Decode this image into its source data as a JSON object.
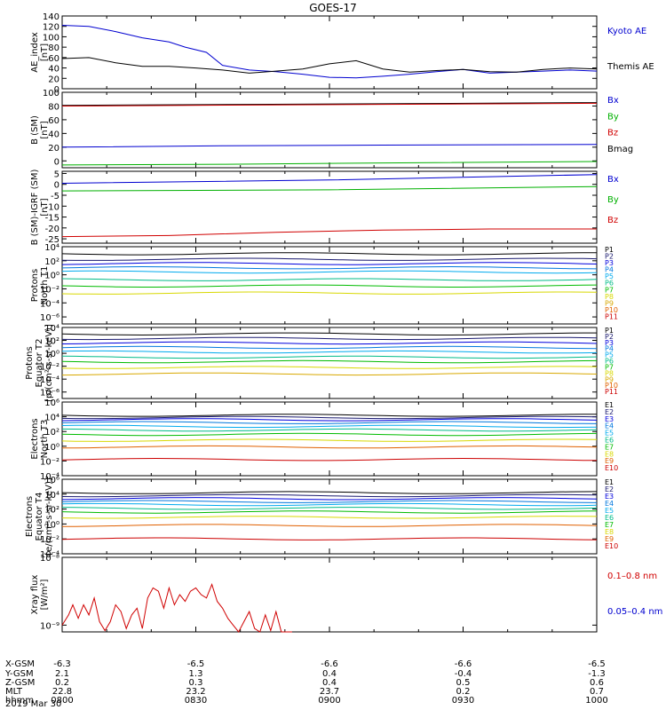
{
  "title": "GOES-17",
  "date_label": "2019 Mar 30",
  "colors": {
    "blue": "#0000d0",
    "black": "#000000",
    "red": "#d00000",
    "green": "#00b000",
    "dark_red": "#c00000",
    "rainbow11": [
      "#000000",
      "#1a1a70",
      "#0000dd",
      "#0077dd",
      "#00aaee",
      "#00bb88",
      "#00bb00",
      "#d8d800",
      "#d8a800",
      "#e06000",
      "#cc0000"
    ],
    "electrons10": [
      "#000000",
      "#1a1a70",
      "#0000dd",
      "#0077dd",
      "#00aaee",
      "#00bb88",
      "#00bb00",
      "#d8d800",
      "#e06000",
      "#cc0000"
    ]
  },
  "ephemeris": {
    "row_labels": [
      "X-GSM",
      "Y-GSM",
      "Z-GSM",
      "MLT",
      "hhmm"
    ],
    "columns": [
      [
        "-6.3",
        "2.1",
        "0.2",
        "22.8",
        "0800"
      ],
      [
        "-6.5",
        "1.3",
        "0.3",
        "23.2",
        "0830"
      ],
      [
        "-6.6",
        "0.4",
        "0.4",
        "23.7",
        "0900"
      ],
      [
        "-6.6",
        "-0.4",
        "0.5",
        "0.2",
        "0930"
      ],
      [
        "-6.5",
        "-1.3",
        "0.6",
        "0.7",
        "1000"
      ]
    ]
  },
  "chart_data": [
    {
      "type": "line",
      "ylabel": [
        "AE_index",
        "[nT]"
      ],
      "ylim": [
        0,
        140
      ],
      "yticks": [
        "0",
        "20",
        "40",
        "60",
        "80",
        "100",
        "120",
        "140"
      ],
      "time_range": [
        "0800",
        "1000"
      ],
      "legend": [
        {
          "label": "Kyoto AE",
          "color": "#0000d0"
        },
        {
          "label": "Themis AE",
          "color": "#000000"
        }
      ],
      "series": [
        {
          "name": "Kyoto AE",
          "color": "#0000d0",
          "x": [
            0,
            0.05,
            0.1,
            0.15,
            0.2,
            0.23,
            0.27,
            0.3,
            0.35,
            0.4,
            0.45,
            0.5,
            0.55,
            0.6,
            0.65,
            0.7,
            0.75,
            0.8,
            0.85,
            0.9,
            0.95,
            1.0
          ],
          "values": [
            122,
            120,
            110,
            98,
            90,
            80,
            70,
            45,
            36,
            33,
            28,
            22,
            21,
            24,
            28,
            33,
            37,
            30,
            32,
            34,
            36,
            34
          ]
        },
        {
          "name": "Themis AE",
          "color": "#000000",
          "x": [
            0,
            0.05,
            0.1,
            0.15,
            0.2,
            0.25,
            0.3,
            0.35,
            0.4,
            0.45,
            0.5,
            0.55,
            0.6,
            0.65,
            0.7,
            0.75,
            0.8,
            0.85,
            0.9,
            0.95,
            1.0
          ],
          "values": [
            58,
            60,
            50,
            43,
            43,
            40,
            36,
            30,
            34,
            38,
            48,
            54,
            38,
            32,
            35,
            37,
            33,
            32,
            37,
            40,
            38
          ]
        }
      ]
    },
    {
      "type": "line",
      "ylabel": [
        "B (SM)",
        "[nT]"
      ],
      "ylim": [
        -10,
        100
      ],
      "yticks": [
        "0",
        "20",
        "40",
        "60",
        "80",
        "100"
      ],
      "legend": [
        {
          "label": "Bx",
          "color": "#0000d0"
        },
        {
          "label": "By",
          "color": "#00b000"
        },
        {
          "label": "Bz",
          "color": "#d00000"
        },
        {
          "label": "Bmag",
          "color": "#000000"
        }
      ],
      "series": [
        {
          "name": "Bmag",
          "color": "#000000",
          "x": [
            0,
            1
          ],
          "values": [
            81,
            85
          ]
        },
        {
          "name": "Bz",
          "color": "#d00000",
          "x": [
            0,
            1
          ],
          "values": [
            80,
            84
          ]
        },
        {
          "name": "Bx",
          "color": "#0000d0",
          "x": [
            0,
            0.3,
            0.6,
            1
          ],
          "values": [
            20,
            22,
            23,
            24
          ]
        },
        {
          "name": "By",
          "color": "#00b000",
          "x": [
            0,
            0.3,
            0.6,
            1
          ],
          "values": [
            -6,
            -5,
            -3,
            -1
          ]
        }
      ]
    },
    {
      "type": "line",
      "ylabel": [
        "B (SM)-IGRF (SM)",
        "[nT]"
      ],
      "ylim": [
        -27,
        6
      ],
      "yticks": [
        "-25",
        "-20",
        "-15",
        "-10",
        "-5",
        "0",
        "5"
      ],
      "legend": [
        {
          "label": "Bx",
          "color": "#0000d0"
        },
        {
          "label": "By",
          "color": "#00b000"
        },
        {
          "label": "Bz",
          "color": "#d00000"
        }
      ],
      "series": [
        {
          "name": "Bx",
          "color": "#0000d0",
          "x": [
            0,
            0.5,
            0.8,
            1
          ],
          "values": [
            0.5,
            2,
            3.5,
            4.5
          ]
        },
        {
          "name": "By",
          "color": "#00b000",
          "x": [
            0,
            0.5,
            1
          ],
          "values": [
            -3,
            -2.5,
            -1
          ]
        },
        {
          "name": "Bz",
          "color": "#d00000",
          "x": [
            0,
            0.2,
            0.4,
            0.6,
            0.8,
            1
          ],
          "values": [
            -24,
            -23.5,
            -22,
            -21,
            -20.5,
            -20.5
          ]
        }
      ]
    },
    {
      "type": "line",
      "log": true,
      "ylabel": [
        "Protons",
        "North T1"
      ],
      "ylim_exp": [
        -7,
        4
      ],
      "yticks_exp": [
        -6,
        -4,
        -2,
        0,
        2,
        4
      ],
      "legend_labels": [
        "P1",
        "P2",
        "P3",
        "P4",
        "P5",
        "P6",
        "P7",
        "P8",
        "P9",
        "P10",
        "P11"
      ],
      "levels_exp": [
        3.0,
        2.2,
        1.6,
        1.0,
        0.4,
        -0.7,
        -1.6,
        -2.6,
        -8,
        -8,
        -8
      ]
    },
    {
      "type": "line",
      "log": true,
      "ylabel": [
        "Protons",
        "Equator T2",
        "[p/(cm²-s-sr-keV)]"
      ],
      "ylim_exp": [
        -7,
        4
      ],
      "yticks_exp": [
        -6,
        -4,
        -2,
        0,
        2,
        4
      ],
      "legend_labels": [
        "P1",
        "P2",
        "P3",
        "P4",
        "P5",
        "P6",
        "P7",
        "P8",
        "P9",
        "P10",
        "P11"
      ],
      "levels_exp": [
        3.0,
        2.3,
        1.6,
        0.9,
        0.2,
        -0.6,
        -1.3,
        -2.2,
        -3.2,
        -8,
        -8
      ]
    },
    {
      "type": "line",
      "log": true,
      "ylabel": [
        "Electrons",
        "North T3"
      ],
      "ylim_exp": [
        -4,
        6
      ],
      "yticks_exp": [
        -4,
        -2,
        0,
        2,
        4,
        6
      ],
      "legend_labels": [
        "E1",
        "E2",
        "E3",
        "E4",
        "E5",
        "E6",
        "E7",
        "E8",
        "E9",
        "E10"
      ],
      "levels_exp": [
        4.2,
        3.9,
        3.6,
        3.2,
        2.7,
        2.2,
        1.6,
        0.8,
        -0.1,
        -1.8
      ]
    },
    {
      "type": "line",
      "log": true,
      "ylabel": [
        "Electrons",
        "Equator T4",
        "[e/(cm²-s-sr-keV)]"
      ],
      "ylim_exp": [
        -4,
        6
      ],
      "yticks_exp": [
        -4,
        -2,
        0,
        2,
        4,
        6
      ],
      "legend_labels": [
        "E1",
        "E2",
        "E3",
        "E4",
        "E5",
        "E6",
        "E7",
        "E8",
        "E9",
        "E10"
      ],
      "levels_exp": [
        4.2,
        3.8,
        3.4,
        3.0,
        2.6,
        2.1,
        1.6,
        0.9,
        -0.2,
        -2.0
      ]
    },
    {
      "type": "line",
      "log": true,
      "ylabel": [
        "Xray flux",
        "[W/m²]"
      ],
      "ylim_exp": [
        -9.1,
        -8
      ],
      "yticks_exp": [
        -9,
        -8
      ],
      "legend": [
        {
          "label": "0.1–0.8 nm",
          "color": "#d00000"
        },
        {
          "label": "0.05–0.4 nm",
          "color": "#0000d0"
        }
      ],
      "series": [
        {
          "name": "0.1–0.8 nm",
          "color": "#d00000",
          "x": [
            0.0,
            0.012,
            0.02,
            0.03,
            0.04,
            0.05,
            0.06,
            0.07,
            0.08,
            0.09,
            0.1,
            0.11,
            0.12,
            0.13,
            0.14,
            0.15,
            0.16,
            0.17,
            0.18,
            0.19,
            0.2,
            0.21,
            0.22,
            0.23,
            0.24,
            0.25,
            0.26,
            0.27,
            0.28,
            0.29,
            0.3,
            0.31,
            0.32,
            0.33,
            0.34,
            0.35,
            0.36,
            0.37,
            0.38,
            0.39,
            0.4,
            0.41,
            0.42,
            0.43
          ],
          "values": [
            -9.0,
            -8.85,
            -8.7,
            -8.9,
            -8.7,
            -8.85,
            -8.6,
            -8.95,
            -9.08,
            -8.95,
            -8.7,
            -8.8,
            -9.05,
            -8.85,
            -8.75,
            -9.05,
            -8.6,
            -8.45,
            -8.5,
            -8.75,
            -8.45,
            -8.7,
            -8.55,
            -8.65,
            -8.5,
            -8.45,
            -8.55,
            -8.6,
            -8.4,
            -8.65,
            -8.75,
            -8.9,
            -9.0,
            -9.1,
            -8.95,
            -8.8,
            -9.05,
            -9.1,
            -8.85,
            -9.08,
            -8.8,
            -9.1,
            -9.1,
            -9.1
          ]
        }
      ]
    }
  ]
}
